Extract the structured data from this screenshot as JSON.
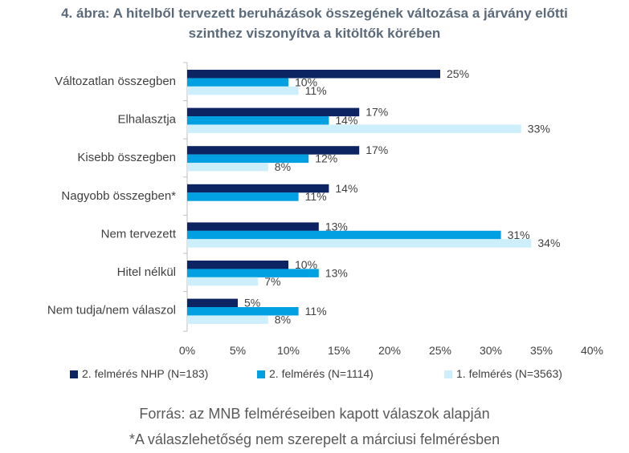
{
  "title_line1": "4. ábra: A hitelből tervezett beruházások összegének változása a járvány előtti",
  "title_line2": "szinthez viszonyítva a kitöltők körében",
  "source_note": "Forrás: az MNB felméréseiben kapott válaszok alapján",
  "footnote": "*A válaszlehetőség nem szerepelt a márciusi felmérésben",
  "colors": {
    "series_1": "#0c2461",
    "series_2": "#00a0e3",
    "series_3": "#cdeefb",
    "axis": "#bfbfbf",
    "text": "#404040"
  },
  "chart_data": {
    "type": "bar",
    "orientation": "horizontal",
    "categories": [
      "Változatlan összegben",
      "Elhalasztja",
      "Kisebb összegben",
      "Nagyobb összegben*",
      "Nem tervezett",
      "Hitel nélkül",
      "Nem tudja/nem válaszol"
    ],
    "series": [
      {
        "name": "2. felmérés NHP (N=183)",
        "values": [
          25,
          17,
          17,
          14,
          13,
          10,
          5
        ]
      },
      {
        "name": "2. felmérés (N=1114)",
        "values": [
          10,
          14,
          12,
          11,
          31,
          13,
          11
        ]
      },
      {
        "name": "1. felmérés (N=3563)",
        "values": [
          11,
          33,
          8,
          null,
          34,
          7,
          8
        ]
      }
    ],
    "value_labels": [
      [
        "25%",
        "17%",
        "17%",
        "14%",
        "13%",
        "10%",
        "5%"
      ],
      [
        "10%",
        "14%",
        "12%",
        "11%",
        "31%",
        "13%",
        "11%"
      ],
      [
        "11%",
        "33%",
        "8%",
        null,
        "34%",
        "7%",
        "8%"
      ]
    ],
    "xlim": [
      0,
      40
    ],
    "xticks": [
      0,
      5,
      10,
      15,
      20,
      25,
      30,
      35,
      40
    ],
    "xtick_labels": [
      "0%",
      "5%",
      "10%",
      "15%",
      "20%",
      "25%",
      "30%",
      "35%",
      "40%"
    ],
    "legend_position": "bottom",
    "grid": false
  }
}
